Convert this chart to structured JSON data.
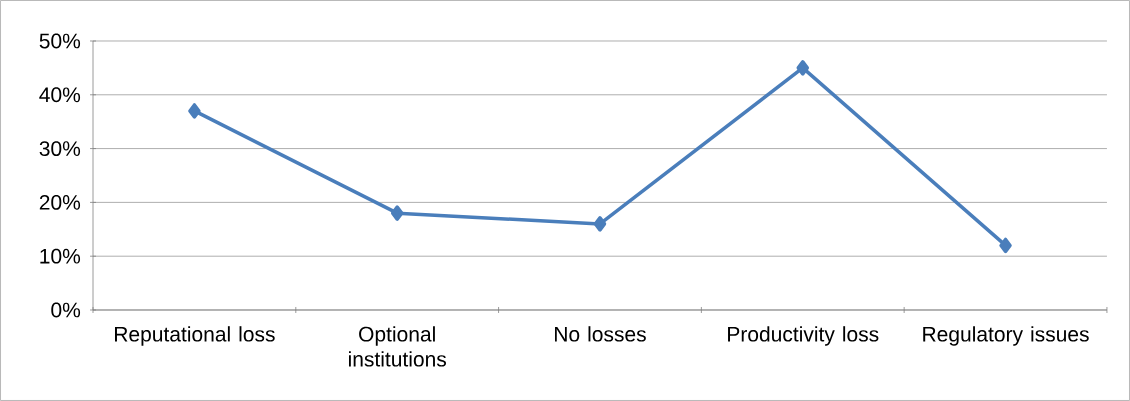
{
  "chart_data": {
    "type": "line",
    "categories": [
      "Reputational loss",
      "Optional institutions",
      "No losses",
      "Productivity loss",
      "Regulatory issues"
    ],
    "series": [
      {
        "color": "#4a7ebb",
        "values": [
          37,
          18,
          16,
          45,
          12
        ]
      }
    ],
    "ylim": [
      0,
      50
    ],
    "yticks": [
      {
        "value": 0,
        "label": "0%"
      },
      {
        "value": 10,
        "label": "10%"
      },
      {
        "value": 20,
        "label": "20%"
      },
      {
        "value": 30,
        "label": "30%"
      },
      {
        "value": 40,
        "label": "40%"
      },
      {
        "value": 50,
        "label": "50%"
      }
    ],
    "grid": "y",
    "marker": "diamond",
    "line_style": "solid"
  }
}
